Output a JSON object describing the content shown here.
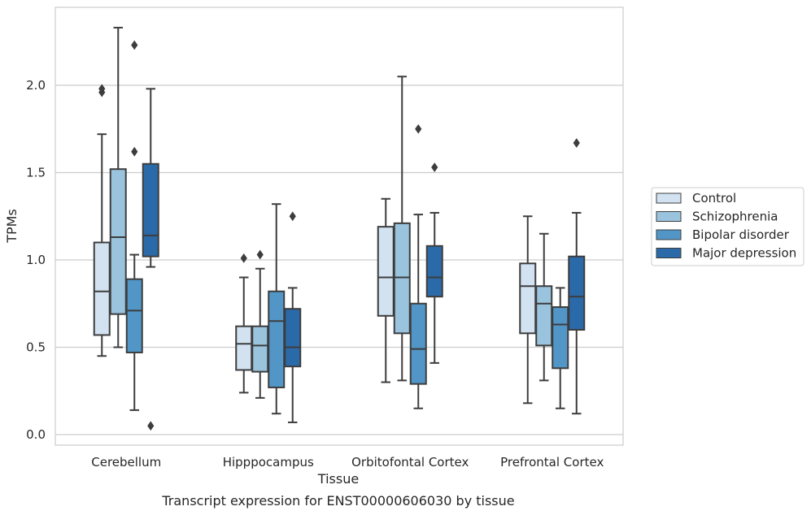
{
  "caption": "Transcript expression for ENST00000606030 by tissue",
  "chart_data": {
    "type": "box",
    "xlabel": "Tissue",
    "ylabel": "TPMs",
    "categories": [
      "Cerebellum",
      "Hipppocampus",
      "Orbitofontal Cortex",
      "Prefrontal Cortex"
    ],
    "ylim": [
      -0.05,
      2.45
    ],
    "yticks": [
      "0.0",
      "0.5",
      "1.0",
      "1.5",
      "2.0"
    ],
    "grid": "horizontal",
    "legend_position": "right",
    "series": [
      {
        "name": "Control",
        "color": "#d2e2f1",
        "boxes": [
          {
            "q1": 0.57,
            "median": 0.82,
            "q3": 1.1,
            "whislo": 0.45,
            "whishi": 1.72,
            "fliers": [
              1.96,
              1.98
            ]
          },
          {
            "q1": 0.37,
            "median": 0.52,
            "q3": 0.62,
            "whislo": 0.24,
            "whishi": 0.9,
            "fliers": [
              1.01
            ]
          },
          {
            "q1": 0.68,
            "median": 0.9,
            "q3": 1.19,
            "whislo": 0.3,
            "whishi": 1.35,
            "fliers": []
          },
          {
            "q1": 0.58,
            "median": 0.85,
            "q3": 0.98,
            "whislo": 0.18,
            "whishi": 1.25,
            "fliers": []
          }
        ]
      },
      {
        "name": "Schizophrenia",
        "color": "#9ac4de",
        "boxes": [
          {
            "q1": 0.69,
            "median": 1.13,
            "q3": 1.52,
            "whislo": 0.5,
            "whishi": 2.33,
            "fliers": []
          },
          {
            "q1": 0.36,
            "median": 0.51,
            "q3": 0.62,
            "whislo": 0.21,
            "whishi": 0.95,
            "fliers": [
              1.03
            ]
          },
          {
            "q1": 0.58,
            "median": 0.9,
            "q3": 1.21,
            "whislo": 0.31,
            "whishi": 2.05,
            "fliers": []
          },
          {
            "q1": 0.51,
            "median": 0.75,
            "q3": 0.85,
            "whislo": 0.31,
            "whishi": 1.15,
            "fliers": []
          }
        ]
      },
      {
        "name": "Bipolar disorder",
        "color": "#5296c8",
        "boxes": [
          {
            "q1": 0.47,
            "median": 0.71,
            "q3": 0.89,
            "whislo": 0.14,
            "whishi": 1.03,
            "fliers": [
              1.62,
              2.23
            ]
          },
          {
            "q1": 0.27,
            "median": 0.65,
            "q3": 0.82,
            "whislo": 0.12,
            "whishi": 1.32,
            "fliers": []
          },
          {
            "q1": 0.29,
            "median": 0.49,
            "q3": 0.75,
            "whislo": 0.15,
            "whishi": 1.26,
            "fliers": [
              1.75
            ]
          },
          {
            "q1": 0.38,
            "median": 0.63,
            "q3": 0.73,
            "whislo": 0.15,
            "whishi": 0.84,
            "fliers": []
          }
        ]
      },
      {
        "name": "Major depression",
        "color": "#2b6aa8",
        "boxes": [
          {
            "q1": 1.02,
            "median": 1.14,
            "q3": 1.55,
            "whislo": 0.96,
            "whishi": 1.98,
            "fliers": [
              0.05
            ]
          },
          {
            "q1": 0.39,
            "median": 0.5,
            "q3": 0.72,
            "whislo": 0.07,
            "whishi": 0.84,
            "fliers": [
              1.25
            ]
          },
          {
            "q1": 0.79,
            "median": 0.9,
            "q3": 1.08,
            "whislo": 0.41,
            "whishi": 1.27,
            "fliers": [
              1.53
            ]
          },
          {
            "q1": 0.6,
            "median": 0.79,
            "q3": 1.02,
            "whislo": 0.12,
            "whishi": 1.27,
            "fliers": [
              1.67
            ]
          }
        ]
      }
    ]
  }
}
